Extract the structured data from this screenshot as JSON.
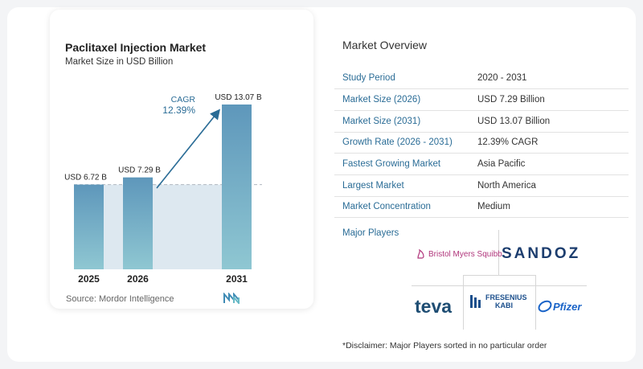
{
  "chart_data": {
    "type": "bar",
    "title": "Paclitaxel Injection Market",
    "subtitle": "Market Size in USD Billion",
    "categories": [
      "2025",
      "2026",
      "2031"
    ],
    "values": [
      6.72,
      7.29,
      13.07
    ],
    "data_labels": [
      "USD 6.72 B",
      "USD 7.29 B",
      "USD 13.07 B"
    ],
    "ylim": [
      0,
      13.07
    ],
    "cagr_label": "CAGR",
    "cagr_value": "12.39%",
    "grid": false
  },
  "colors": {
    "bar_top": "#5e97bb",
    "bar_bottom": "#8fc7d2",
    "band": "#dde8f0",
    "accent": "#2a6c96",
    "teva": "#1e4d73",
    "sandoz": "#1c3d6e"
  },
  "source": "Source:  Mordor Intelligence",
  "overview": {
    "title": "Market Overview",
    "rows": [
      {
        "label": "Study Period",
        "value": "2020 - 2031"
      },
      {
        "label": "Market Size (2026)",
        "value": "USD 7.29 Billion"
      },
      {
        "label": "Market Size (2031)",
        "value": "USD 13.07 Billion"
      },
      {
        "label": "Growth Rate (2026 - 2031)",
        "value": "12.39% CAGR"
      },
      {
        "label": "Fastest Growing Market",
        "value": "Asia Pacific"
      },
      {
        "label": "Largest Market",
        "value": "North America"
      },
      {
        "label": "Market Concentration",
        "value": "Medium"
      }
    ]
  },
  "players": {
    "title": "Major Players",
    "bms": "Bristol Myers Squibb",
    "sandoz": "SANDOZ",
    "teva": "teva",
    "fresenius_line1": "FRESENIUS",
    "fresenius_line2": "KABI",
    "pfizer": "Pfizer"
  },
  "disclaimer": "*Disclaimer: Major Players sorted in no particular order"
}
